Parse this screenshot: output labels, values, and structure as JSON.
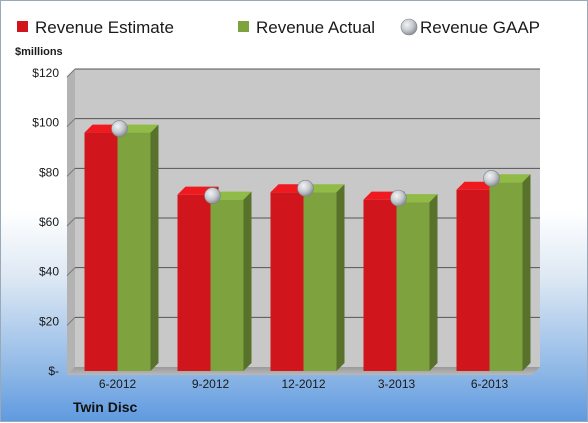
{
  "company": "Twin Disc",
  "chart_data": {
    "type": "bar",
    "unit_label": "$millions",
    "categories": [
      "6-2012",
      "9-2012",
      "12-2012",
      "3-2013",
      "6-2013"
    ],
    "series": [
      {
        "name": "Revenue Estimate",
        "type": "bar",
        "color": "#d0161c",
        "values": [
          96,
          71,
          72,
          69,
          73
        ]
      },
      {
        "name": "Revenue Actual",
        "type": "bar",
        "color": "#7ea33e",
        "values": [
          96,
          69,
          72,
          68,
          76
        ]
      },
      {
        "name": "Revenue GAAP",
        "type": "scatter",
        "color": "#b7bcc2",
        "values": [
          96,
          69,
          72,
          68,
          76
        ]
      }
    ],
    "y_ticks": [
      {
        "value": 0,
        "label": "$-"
      },
      {
        "value": 20,
        "label": "$20"
      },
      {
        "value": 40,
        "label": "$40"
      },
      {
        "value": 60,
        "label": "$60"
      },
      {
        "value": 80,
        "label": "$80"
      },
      {
        "value": 100,
        "label": "$100"
      },
      {
        "value": 120,
        "label": "$120"
      }
    ],
    "ylim": [
      0,
      120
    ],
    "grid": true,
    "legend_position": "top",
    "plot_background": "#c8c8c8"
  }
}
